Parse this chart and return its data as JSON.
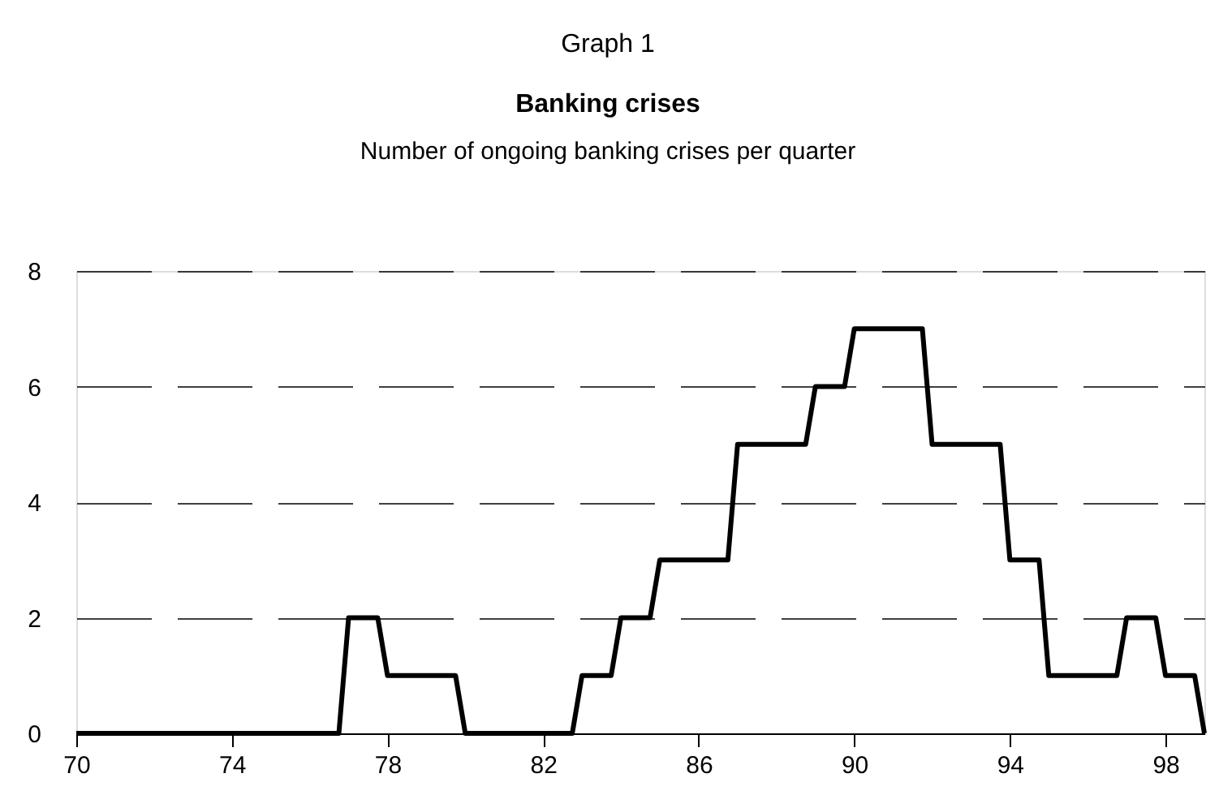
{
  "chart_data": {
    "type": "line",
    "title": "Banking crises",
    "subtitle": "Number of ongoing banking crises per quarter",
    "annotations": [
      "Graph 1"
    ],
    "series": [
      {
        "color": "#000000",
        "x": [
          70,
          76.75,
          77,
          77.75,
          78,
          79.75,
          80,
          82.75,
          83,
          83.75,
          84,
          84.75,
          85,
          86.75,
          87,
          88.75,
          89,
          89.75,
          90,
          91.75,
          92,
          93.75,
          94,
          94.75,
          95,
          96.75,
          97,
          97.75,
          98,
          98.75,
          99
        ],
        "values": [
          0,
          0,
          2,
          2,
          1,
          1,
          0,
          0,
          1,
          1,
          2,
          2,
          3,
          3,
          5,
          5,
          6,
          6,
          7,
          7,
          5,
          5,
          3,
          3,
          1,
          1,
          2,
          2,
          1,
          1,
          0
        ]
      }
    ],
    "xlim": [
      70,
      99
    ],
    "xticks": [
      70,
      74,
      78,
      82,
      86,
      90,
      94,
      98
    ],
    "ylim": [
      0,
      8
    ],
    "yticks": [
      0,
      2,
      4,
      6,
      8
    ],
    "grid": "y",
    "legend": false,
    "marker": "none",
    "line_style": "solid"
  }
}
